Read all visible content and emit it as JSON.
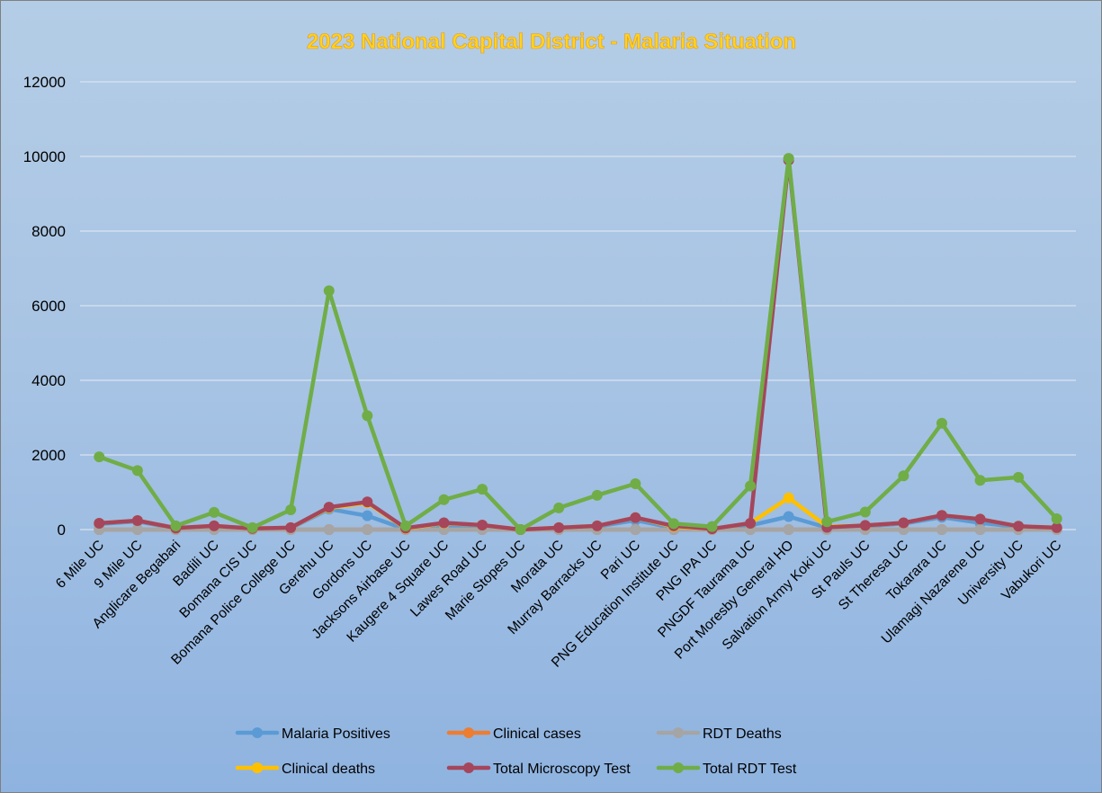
{
  "chart_data": {
    "type": "line",
    "title": "2023 National Capital District - Malaria Situation",
    "xlabel": "",
    "ylabel": "",
    "ylim": [
      0,
      12000
    ],
    "yticks": [
      0,
      2000,
      4000,
      6000,
      8000,
      10000,
      12000
    ],
    "grid": true,
    "legend_position": "bottom",
    "categories": [
      "6 Mile UC",
      "9 Mile UC",
      "Anglicare Begabari",
      "Badili UC",
      "Bomana CIS UC",
      "Bomana Police College UC",
      "Gerehu UC",
      "Gordons UC",
      "Jacksons Airbase UC",
      "Kaugere 4 Square UC",
      "Lawes Road UC",
      "Marie Stopes UC",
      "Morata UC",
      "Murray Barracks UC",
      "Pari UC",
      "PNG Education Institute UC",
      "PNG IPA UC",
      "PNGDF Taurama UC",
      "Port Moresby General HO",
      "Salvation Army Koki UC",
      "St Pauls UC",
      "St Theresa UC",
      "Tokarara UC",
      "Ulamagi Nazarene UC",
      "University UC",
      "Vabukori UC"
    ],
    "series": [
      {
        "name": "Malaria Positives",
        "color": "#5b9bd5",
        "values": [
          150,
          220,
          30,
          90,
          20,
          40,
          550,
          370,
          10,
          60,
          100,
          0,
          40,
          80,
          250,
          40,
          10,
          110,
          350,
          50,
          90,
          160,
          330,
          180,
          70,
          40
        ]
      },
      {
        "name": "Clinical cases",
        "color": "#ed7d31",
        "values": [
          0,
          0,
          0,
          0,
          0,
          0,
          0,
          0,
          0,
          0,
          0,
          0,
          0,
          0,
          0,
          0,
          0,
          0,
          0,
          0,
          0,
          0,
          0,
          0,
          0,
          0
        ]
      },
      {
        "name": "RDT Deaths",
        "color": "#a5a5a5",
        "values": [
          0,
          0,
          0,
          0,
          0,
          0,
          0,
          0,
          0,
          0,
          0,
          0,
          0,
          0,
          0,
          0,
          0,
          0,
          0,
          0,
          0,
          0,
          0,
          0,
          0,
          0
        ]
      },
      {
        "name": "Clinical deaths",
        "color": "#ffc000",
        "values": [
          170,
          240,
          40,
          100,
          30,
          50,
          580,
          720,
          30,
          170,
          120,
          0,
          50,
          100,
          320,
          80,
          20,
          170,
          850,
          80,
          110,
          180,
          380,
          280,
          90,
          50
        ]
      },
      {
        "name": "Total Microscopy Test",
        "color": "#a5465c",
        "values": [
          170,
          240,
          40,
          100,
          30,
          50,
          600,
          740,
          40,
          180,
          120,
          0,
          50,
          100,
          320,
          100,
          20,
          170,
          9900,
          60,
          110,
          180,
          380,
          280,
          90,
          50
        ]
      },
      {
        "name": "Total RDT Test",
        "color": "#70ad47",
        "values": [
          1950,
          1580,
          100,
          460,
          50,
          530,
          6400,
          3050,
          100,
          800,
          1080,
          0,
          580,
          920,
          1230,
          160,
          80,
          1170,
          9950,
          210,
          470,
          1440,
          2850,
          1320,
          1400,
          290
        ]
      }
    ]
  }
}
